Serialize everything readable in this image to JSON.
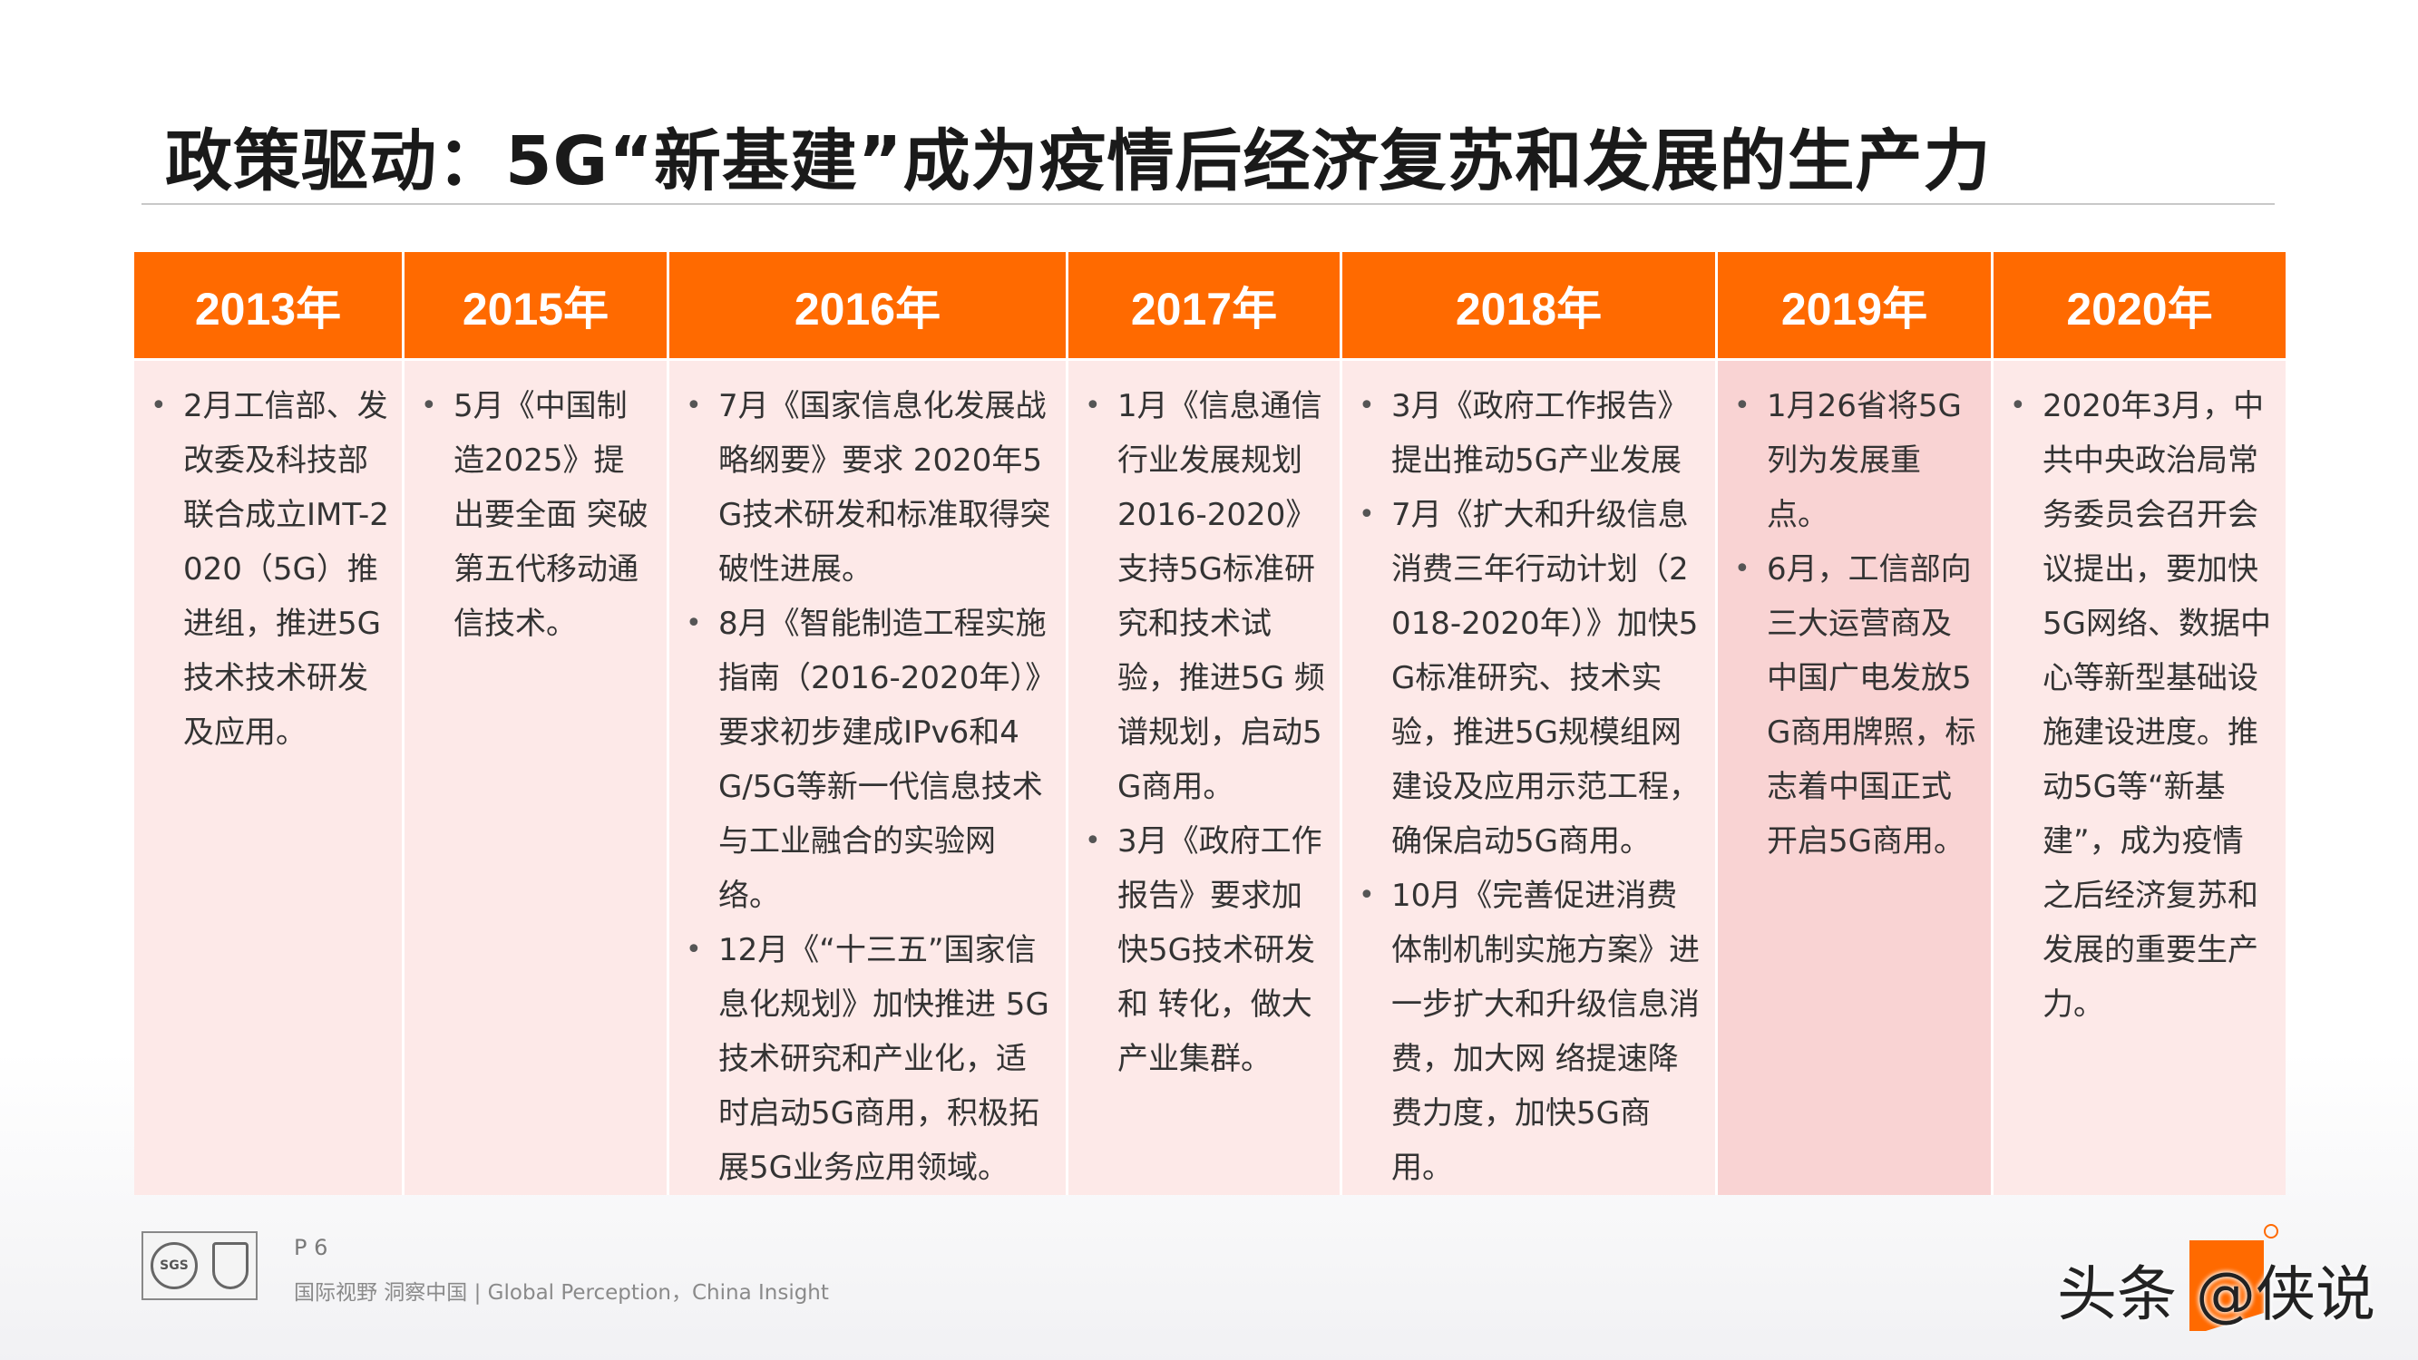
{
  "slide": {
    "title": "政策驱动：5G“新基建”成为疫情后经济复苏和发展的生产力",
    "page": "P 6",
    "slogan": "国际视野  洞察中国 |  Global Perception，China Insight",
    "watermark": "头条 @侠说",
    "accent_color": "#ff6a00",
    "body_color": "#fde9e8",
    "highlight_body_color": "#f9d3d3"
  },
  "timeline": [
    {
      "year": "2013年",
      "items": [
        "2月工信部、发改委及科技部联合成立IMT-2020（5G）推进组，推进5G技术技术研发及应用。"
      ]
    },
    {
      "year": "2015年",
      "items": [
        "5月《中国制造2025》提出要全面 突破第五代移动通信技术。"
      ]
    },
    {
      "year": "2016年",
      "items": [
        "7月《国家信息化发展战略纲要》要求 2020年5G技术研发和标准取得突破性进展。",
        "8月《智能制造工程实施指南（2016-2020年）》要求初步建成IPv6和4G/5G等新一代信息技术与工业融合的实验网络。",
        "12月《“十三五”国家信息化规划》加快推进 5G 技术研究和产业化，适时启动5G商用，积极拓展5G业务应用领域。"
      ]
    },
    {
      "year": "2017年",
      "items": [
        "1月《信息通信行业发展规划 2016-2020》支持5G标准研究和技术试验，推进5G 频谱规划，启动5G商用。",
        "3月《政府工作报告》要求加快5G技术研发和 转化，做大产业集群。"
      ]
    },
    {
      "year": "2018年",
      "items": [
        "3月《政府工作报告》提出推动5G产业发展",
        "7月《扩大和升级信息消费三年行动计划（2018-2020年）》加快5G标准研究、技术实验，推进5G规模组网建设及应用示范工程，确保启动5G商用。",
        " 10月《完善促进消费体制机制实施方案》进一步扩大和升级信息消费，加大网 络提速降费力度，加快5G商用。"
      ]
    },
    {
      "year": "2019年",
      "items": [
        "1月26省将5G列为发展重点。",
        "6月，工信部向三大运营商及中国广电发放5G商用牌照，标志着中国正式开启5G商用。"
      ]
    },
    {
      "year": "2020年",
      "items": [
        "2020年3月，中共中央政治局常务委员会召开会议提出，要加快5G网络、数据中心等新型基础设施建设进度。推动5G等“新基建”，成为疫情之后经济复苏和发展的重要生产力。"
      ]
    }
  ]
}
